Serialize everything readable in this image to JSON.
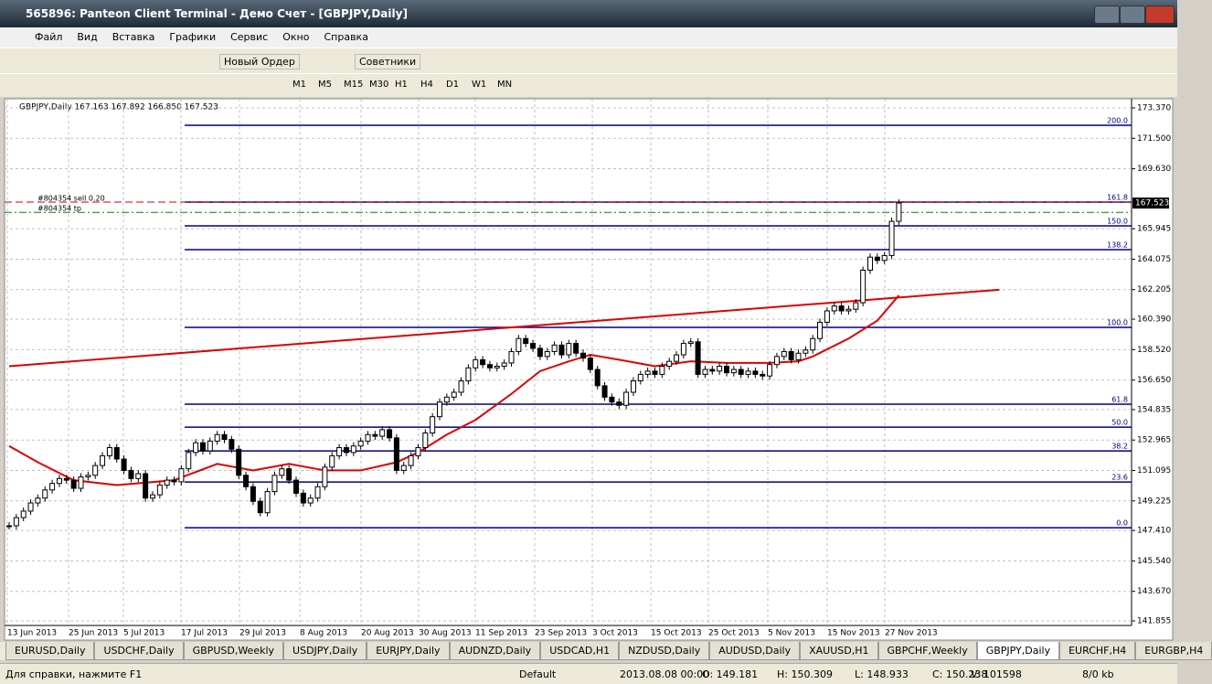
{
  "window": {
    "title": "565896: Panteon Client Terminal - Демо Счет - [GBPJPY,Daily]"
  },
  "menu": [
    "Файл",
    "Вид",
    "Вставка",
    "Графики",
    "Сервис",
    "Окно",
    "Справка"
  ],
  "toolbar": {
    "new_order": "Новый Ордер",
    "experts": "Советники"
  },
  "timeframes": [
    "M1",
    "M5",
    "M15",
    "M30",
    "H1",
    "H4",
    "D1",
    "W1",
    "MN"
  ],
  "tabs": [
    "EURUSD,Daily",
    "USDCHF,Daily",
    "GBPUSD,Weekly",
    "USDJPY,Daily",
    "EURJPY,Daily",
    "AUDNZD,Daily",
    "USDCAD,H1",
    "NZDUSD,Daily",
    "AUDUSD,Daily",
    "XAUUSD,H1",
    "GBPCHF,Weekly",
    "GBPJPY,Daily",
    "EURCHF,H4",
    "EURGBP,H4"
  ],
  "status": {
    "help": "Для справки, нажмите F1",
    "profile": "Default",
    "time": "2013.08.08 00:00",
    "open": "O: 149.181",
    "high": "H: 150.309",
    "low": "L: 148.933",
    "close": "C: 150.238",
    "volume": "V: 101598",
    "traffic": "8/0 kb"
  },
  "chart_data": {
    "type": "candlestick",
    "header": "GBPJPY,Daily  167.163 167.892 166.850 167.523",
    "current_price": {
      "value": 167.523,
      "label": "167.523"
    },
    "order_labels": {
      "sell": "#804354 sell 0.20",
      "tp": "#804354 tp"
    },
    "order_levels": {
      "sell": 167.58,
      "tp": 166.95
    },
    "dates": [
      "13 Jun 2013",
      "25 Jun 2013",
      "5 Jul 2013",
      "17 Jul 2013",
      "29 Jul 2013",
      "8 Aug 2013",
      "20 Aug 2013",
      "30 Aug 2013",
      "11 Sep 2013",
      "23 Sep 2013",
      "3 Oct 2013",
      "15 Oct 2013",
      "25 Oct 2013",
      "5 Nov 2013",
      "15 Nov 2013",
      "27 Nov 2013"
    ],
    "close": [
      147.7,
      148.2,
      148.6,
      149.1,
      149.4,
      149.9,
      150.3,
      150.6,
      150.5,
      150.0,
      150.7,
      150.8,
      151.4,
      152.0,
      152.5,
      151.8,
      151.1,
      150.6,
      150.9,
      149.4,
      149.6,
      150.2,
      150.5,
      150.4,
      151.2,
      152.2,
      152.8,
      152.3,
      152.9,
      153.3,
      153.0,
      152.4,
      150.8,
      150.1,
      149.2,
      148.5,
      149.8,
      150.8,
      151.2,
      150.5,
      149.7,
      149.1,
      149.4,
      150.1,
      151.3,
      152.0,
      152.5,
      152.2,
      152.6,
      152.9,
      153.3,
      153.2,
      153.6,
      153.1,
      151.1,
      151.4,
      152.0,
      152.5,
      153.4,
      154.4,
      155.3,
      155.6,
      155.9,
      156.6,
      157.4,
      157.9,
      157.6,
      157.4,
      157.5,
      157.7,
      158.4,
      159.2,
      158.9,
      158.6,
      158.1,
      158.4,
      158.8,
      158.2,
      158.9,
      158.3,
      158.0,
      157.3,
      156.3,
      155.6,
      155.3,
      155.1,
      155.9,
      156.6,
      157.0,
      157.2,
      157.0,
      157.5,
      157.8,
      158.2,
      158.9,
      159.0,
      157.0,
      157.3,
      157.2,
      157.5,
      157.1,
      157.3,
      157.0,
      157.2,
      157.0,
      156.9,
      157.6,
      158.1,
      158.4,
      157.9,
      158.3,
      158.5,
      159.2,
      160.2,
      160.9,
      161.2,
      160.9,
      161.0,
      161.4,
      163.4,
      164.2,
      164.0,
      164.3,
      166.4,
      167.523
    ],
    "ma": {
      "x": [
        0,
        4,
        9,
        15,
        23,
        29,
        34,
        39,
        44,
        49,
        54,
        57,
        61,
        65,
        70,
        74,
        78,
        81,
        85,
        90,
        95,
        100,
        106,
        110,
        112,
        117,
        121,
        124
      ],
      "values": [
        152.6,
        151.6,
        150.5,
        150.2,
        150.5,
        151.5,
        151.1,
        151.5,
        151.1,
        151.1,
        151.6,
        152.2,
        153.3,
        154.2,
        155.8,
        157.2,
        157.8,
        158.2,
        157.9,
        157.5,
        157.8,
        157.7,
        157.7,
        157.8,
        158.1,
        159.2,
        160.3,
        161.85
      ]
    },
    "trendline": {
      "x": [
        0,
        138
      ],
      "values": [
        157.5,
        162.2
      ]
    },
    "fibo": [
      {
        "label": "0.0",
        "value": 147.58
      },
      {
        "label": "23.6",
        "value": 150.39
      },
      {
        "label": "38.2",
        "value": 152.3
      },
      {
        "label": "50.0",
        "value": 153.76
      },
      {
        "label": "61.8",
        "value": 155.17
      },
      {
        "label": "100.0",
        "value": 159.89
      },
      {
        "label": "138.2",
        "value": 164.66
      },
      {
        "label": "150.0",
        "value": 166.12
      },
      {
        "label": "161.8",
        "value": 167.58
      },
      {
        "label": "200.0",
        "value": 172.3
      }
    ],
    "ylim": [
      141.35,
      173.93
    ],
    "yticks": [
      {
        "value": 173.37,
        "label": "173.370"
      },
      {
        "value": 171.5,
        "label": "171.500"
      },
      {
        "value": 169.63,
        "label": "169.630"
      },
      {
        "value": 165.945,
        "label": "165.945"
      },
      {
        "value": 164.075,
        "label": "164.075"
      },
      {
        "value": 162.205,
        "label": "162.205"
      },
      {
        "value": 160.39,
        "label": "160.390"
      },
      {
        "value": 158.52,
        "label": "158.520"
      },
      {
        "value": 156.65,
        "label": "156.650"
      },
      {
        "value": 154.835,
        "label": "154.835"
      },
      {
        "value": 152.965,
        "label": "152.965"
      },
      {
        "value": 151.095,
        "label": "151.095"
      },
      {
        "value": 149.225,
        "label": "149.225"
      },
      {
        "value": 147.41,
        "label": "147.410"
      },
      {
        "value": 145.54,
        "label": "145.540"
      },
      {
        "value": 143.67,
        "label": "143.670"
      },
      {
        "value": 141.855,
        "label": "141.855"
      }
    ],
    "grid": true
  }
}
